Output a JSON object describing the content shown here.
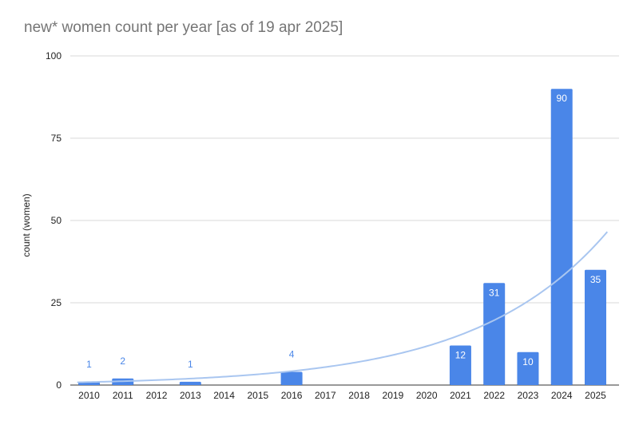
{
  "chart_data": {
    "type": "bar",
    "title": "new* women count per year  [as of 19 apr 2025]",
    "xlabel": "",
    "ylabel": "count (women)",
    "ylim": [
      0,
      100
    ],
    "yticks": [
      "0",
      "25",
      "50",
      "75",
      "100"
    ],
    "grid": true,
    "legend": "none",
    "bar_color": "#4a86e8",
    "trendline": {
      "type": "exponential",
      "color": "#a9c6f0"
    },
    "categories": [
      "2010",
      "2011",
      "2012",
      "2013",
      "2014",
      "2015",
      "2016",
      "2017",
      "2018",
      "2019",
      "2020",
      "2021",
      "2022",
      "2023",
      "2024",
      "2025"
    ],
    "values": [
      1,
      2,
      0,
      1,
      0,
      0,
      4,
      0,
      0,
      0,
      0,
      12,
      31,
      10,
      90,
      35
    ],
    "data_labels": [
      "1",
      "2",
      "",
      "1",
      "",
      "",
      "4",
      "",
      "",
      "",
      "",
      "12",
      "31",
      "10",
      "90",
      "35"
    ]
  }
}
